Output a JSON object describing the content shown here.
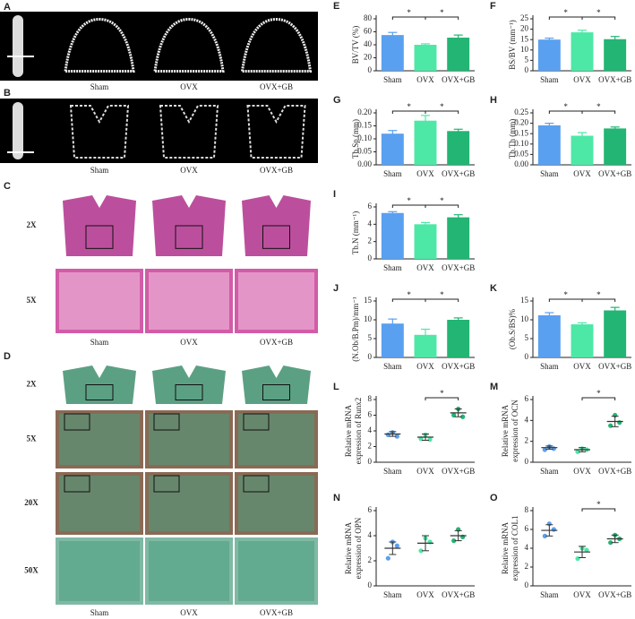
{
  "image_panels": [
    {
      "panel": "A",
      "columns": [
        "Sham",
        "OVX",
        "OVX+GB"
      ]
    },
    {
      "panel": "B",
      "columns": [
        "Sham",
        "OVX",
        "OVX+GB"
      ]
    },
    {
      "panel": "C",
      "rows": [
        "2X",
        "5X"
      ],
      "columns": [
        "Sham",
        "OVX",
        "OVX+GB"
      ]
    },
    {
      "panel": "D",
      "rows": [
        "2X",
        "5X",
        "20X",
        "50X"
      ],
      "columns": [
        "Sham",
        "OVX",
        "OVX+GB"
      ]
    }
  ],
  "chart_data": [
    {
      "panel": "E",
      "type": "bar",
      "ylabel": "BV/TV (%)",
      "categories": [
        "Sham",
        "OVX",
        "OVX+GB"
      ],
      "colors": [
        "#5aa0f0",
        "#4de8a6",
        "#22b573"
      ],
      "values": [
        55,
        40,
        51
      ],
      "errors": [
        4,
        1.5,
        4
      ],
      "ylim": [
        0,
        80
      ],
      "yticks": [
        0,
        20,
        40,
        60,
        80
      ],
      "significance": [
        {
          "from": 0,
          "to": 1,
          "label": "*"
        },
        {
          "from": 1,
          "to": 2,
          "label": "*"
        }
      ]
    },
    {
      "panel": "F",
      "type": "bar",
      "ylabel": "BS/BV (mm⁻¹)",
      "categories": [
        "Sham",
        "OVX",
        "OVX+GB"
      ],
      "colors": [
        "#5aa0f0",
        "#4de8a6",
        "#22b573"
      ],
      "values": [
        15,
        18.5,
        15.2
      ],
      "errors": [
        0.7,
        1,
        1.3
      ],
      "ylim": [
        0,
        25
      ],
      "yticks": [
        0,
        5,
        10,
        15,
        20,
        25
      ],
      "significance": [
        {
          "from": 0,
          "to": 1,
          "label": "*"
        },
        {
          "from": 1,
          "to": 2,
          "label": "*"
        }
      ]
    },
    {
      "panel": "G",
      "type": "bar",
      "ylabel": "Tb.Sp (mm)",
      "categories": [
        "Sham",
        "OVX",
        "OVX+GB"
      ],
      "colors": [
        "#5aa0f0",
        "#4de8a6",
        "#22b573"
      ],
      "values": [
        0.12,
        0.17,
        0.13
      ],
      "errors": [
        0.012,
        0.02,
        0.007
      ],
      "ylim": [
        0,
        0.2
      ],
      "yticks": [
        {
          "value": 0,
          "label": "0.00"
        },
        {
          "value": 0.05,
          "label": "0.05"
        },
        {
          "value": 0.1,
          "label": "0.10"
        },
        {
          "value": 0.15,
          "label": "0.15"
        },
        {
          "value": 0.2,
          "label": "0.20"
        }
      ],
      "significance": [
        {
          "from": 0,
          "to": 1,
          "label": "*"
        },
        {
          "from": 1,
          "to": 2,
          "label": "*"
        }
      ]
    },
    {
      "panel": "H",
      "type": "bar",
      "ylabel": "Tb.Th (mm)",
      "categories": [
        "Sham",
        "OVX",
        "OVX+GB"
      ],
      "colors": [
        "#5aa0f0",
        "#4de8a6",
        "#22b573"
      ],
      "values": [
        0.19,
        0.14,
        0.175
      ],
      "errors": [
        0.01,
        0.015,
        0.007
      ],
      "ylim": [
        0,
        0.25
      ],
      "yticks": [
        {
          "value": 0,
          "label": "0.00"
        },
        {
          "value": 0.05,
          "label": "0.05"
        },
        {
          "value": 0.1,
          "label": "0.10"
        },
        {
          "value": 0.15,
          "label": "0.15"
        },
        {
          "value": 0.2,
          "label": "0.20"
        },
        {
          "value": 0.25,
          "label": "0.25"
        }
      ],
      "significance": [
        {
          "from": 0,
          "to": 1,
          "label": "*"
        },
        {
          "from": 1,
          "to": 2,
          "label": "*"
        }
      ]
    },
    {
      "panel": "I",
      "type": "bar",
      "ylabel": "Tb.N (mm⁻¹)",
      "categories": [
        "Sham",
        "OVX",
        "OVX+GB"
      ],
      "colors": [
        "#5aa0f0",
        "#4de8a6",
        "#22b573"
      ],
      "values": [
        5.3,
        4.0,
        4.8
      ],
      "errors": [
        0.15,
        0.2,
        0.3
      ],
      "ylim": [
        0,
        6
      ],
      "yticks": [
        0,
        2,
        4,
        6
      ],
      "significance": [
        {
          "from": 0,
          "to": 1,
          "label": "*"
        },
        {
          "from": 1,
          "to": 2,
          "label": "*"
        }
      ]
    },
    {
      "panel": "J",
      "type": "bar",
      "ylabel": "(N.Ob/B.Pm)/mm⁻¹",
      "categories": [
        "Sham",
        "OVX",
        "OVX+GB"
      ],
      "colors": [
        "#5aa0f0",
        "#4de8a6",
        "#22b573"
      ],
      "values": [
        9,
        6,
        10
      ],
      "errors": [
        1.2,
        1.5,
        0.5
      ],
      "ylim": [
        0,
        15
      ],
      "yticks": [
        0,
        5,
        10,
        15
      ],
      "significance": [
        {
          "from": 0,
          "to": 1,
          "label": "*"
        },
        {
          "from": 1,
          "to": 2,
          "label": "*"
        }
      ]
    },
    {
      "panel": "K",
      "type": "bar",
      "ylabel": "(Ob.S/BS)%",
      "categories": [
        "Sham",
        "OVX",
        "OVX+GB"
      ],
      "colors": [
        "#5aa0f0",
        "#4de8a6",
        "#22b573"
      ],
      "values": [
        11.2,
        8.8,
        12.5
      ],
      "errors": [
        0.7,
        0.4,
        0.8
      ],
      "ylim": [
        0,
        15
      ],
      "yticks": [
        0,
        5,
        10,
        15
      ],
      "significance": [
        {
          "from": 0,
          "to": 1,
          "label": "*"
        },
        {
          "from": 1,
          "to": 2,
          "label": "*"
        }
      ]
    },
    {
      "panel": "L",
      "type": "dot",
      "ylabel": [
        "Relative mRNA",
        "expression of Runx2"
      ],
      "categories": [
        "Sham",
        "OVX",
        "OVX+GB"
      ],
      "colors": [
        "#5aa0f0",
        "#4de8a6",
        "#22b573"
      ],
      "points": [
        [
          3.5,
          3.8,
          3.3
        ],
        [
          3.0,
          3.5,
          2.9
        ],
        [
          6.0,
          6.8,
          5.8
        ]
      ],
      "values": [
        3.6,
        3.2,
        6.3
      ],
      "errors": [
        0.3,
        0.4,
        0.5
      ],
      "ylim": [
        0,
        8
      ],
      "yticks": [
        0,
        2,
        4,
        6,
        8
      ],
      "significance": [
        {
          "from": 1,
          "to": 2,
          "label": "*"
        }
      ]
    },
    {
      "panel": "M",
      "type": "dot",
      "ylabel": [
        "Relative mRNA",
        "expression of OCN"
      ],
      "categories": [
        "Sham",
        "OVX",
        "OVX+GB"
      ],
      "colors": [
        "#5aa0f0",
        "#4de8a6",
        "#22b573"
      ],
      "points": [
        [
          1.2,
          1.5,
          1.3
        ],
        [
          1.0,
          1.3,
          1.2
        ],
        [
          3.5,
          4.5,
          3.8
        ]
      ],
      "values": [
        1.4,
        1.2,
        3.9
      ],
      "errors": [
        0.15,
        0.2,
        0.5
      ],
      "ylim": [
        0,
        6
      ],
      "yticks": [
        0,
        2,
        4,
        6
      ],
      "significance": [
        {
          "from": 1,
          "to": 2,
          "label": "*"
        }
      ]
    },
    {
      "panel": "N",
      "type": "dot",
      "ylabel": [
        "Relative mRNA",
        "expression of OPN"
      ],
      "categories": [
        "Sham",
        "OVX",
        "OVX+GB"
      ],
      "colors": [
        "#5aa0f0",
        "#4de8a6",
        "#22b573"
      ],
      "points": [
        [
          2.2,
          3.5,
          3.2
        ],
        [
          2.8,
          3.8,
          3.5
        ],
        [
          3.6,
          4.5,
          3.9
        ]
      ],
      "values": [
        3.0,
        3.4,
        4.0
      ],
      "errors": [
        0.5,
        0.6,
        0.4
      ],
      "ylim": [
        0,
        6
      ],
      "yticks": [
        0,
        2,
        4,
        6
      ],
      "significance": []
    },
    {
      "panel": "O",
      "type": "dot",
      "ylabel": [
        "Relative mRNA",
        "expression of COL1"
      ],
      "categories": [
        "Sham",
        "OVX",
        "OVX+GB"
      ],
      "colors": [
        "#5aa0f0",
        "#4de8a6",
        "#22b573"
      ],
      "points": [
        [
          5.3,
          6.6,
          6.0
        ],
        [
          2.9,
          4.0,
          3.8
        ],
        [
          4.6,
          5.4,
          5.0
        ]
      ],
      "values": [
        5.9,
        3.6,
        5.0
      ],
      "errors": [
        0.6,
        0.6,
        0.4
      ],
      "ylim": [
        0,
        8
      ],
      "yticks": [
        0,
        2,
        4,
        6,
        8
      ],
      "significance": [
        {
          "from": 1,
          "to": 2,
          "label": "*"
        }
      ]
    }
  ]
}
